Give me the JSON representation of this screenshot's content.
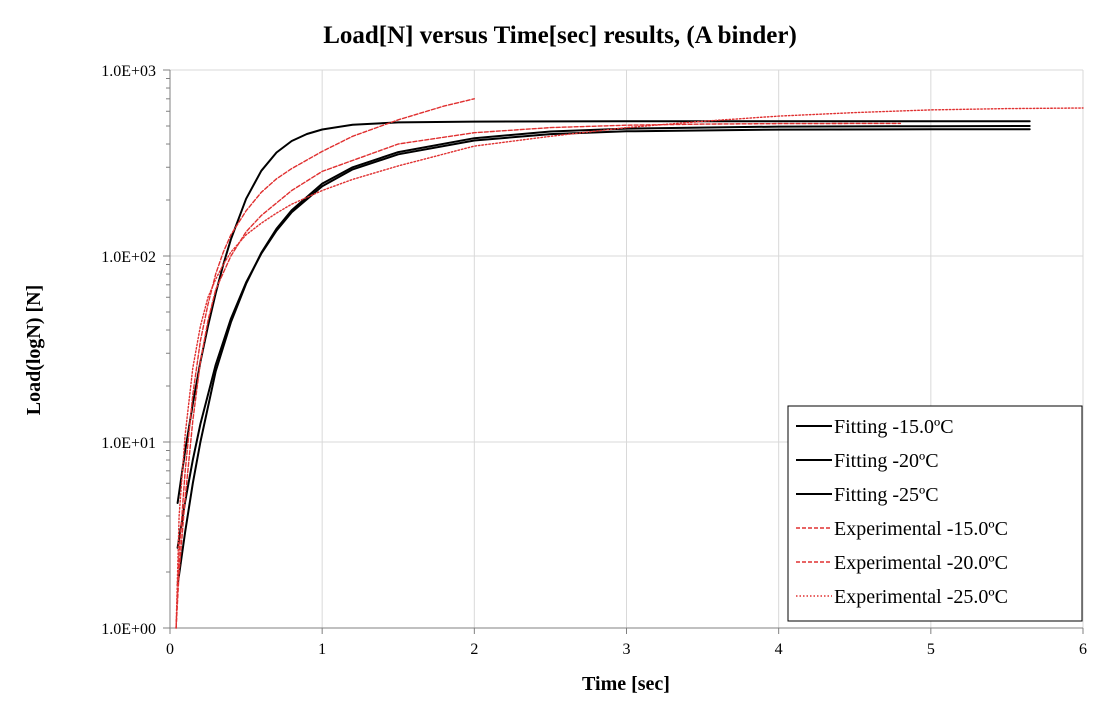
{
  "chart_data": {
    "type": "line",
    "title": "Load[N] versus Time[sec] results, (A binder)",
    "xlabel": "Time [sec]",
    "ylabel": "Load(logN) [N]",
    "xlim": [
      0,
      6
    ],
    "ylim": [
      1,
      1000
    ],
    "y_scale": "log",
    "x_ticks": [
      0,
      1,
      2,
      3,
      4,
      5,
      6
    ],
    "x_tick_labels": [
      "0",
      "1",
      "2",
      "3",
      "4",
      "5",
      "6"
    ],
    "y_ticks": [
      1,
      10,
      100,
      1000
    ],
    "y_tick_labels": [
      "1.0E+00",
      "1.0E+01",
      "1.0E+02",
      "1.0E+03"
    ],
    "grid": true,
    "legend_position": "bottom-right",
    "series": [
      {
        "name": "Fitting -15.0ºC",
        "color": "#000000",
        "style": "solid",
        "x": [
          0.05,
          0.1,
          0.15,
          0.2,
          0.25,
          0.3,
          0.35,
          0.4,
          0.5,
          0.6,
          0.7,
          0.8,
          0.9,
          1.0,
          1.2,
          1.5,
          2.0,
          3.0,
          4.0,
          5.0,
          5.65
        ],
        "y": [
          4.7,
          9,
          16,
          27,
          42,
          63,
          90,
          123,
          203,
          287,
          360,
          415,
          453,
          479,
          508,
          523,
          528,
          530,
          530,
          530,
          530
        ]
      },
      {
        "name": "Fitting -20ºC",
        "color": "#000000",
        "style": "solid",
        "x": [
          0.05,
          0.1,
          0.15,
          0.2,
          0.3,
          0.4,
          0.5,
          0.6,
          0.7,
          0.8,
          1.0,
          1.2,
          1.5,
          2.0,
          2.5,
          3.0,
          4.0,
          5.0,
          5.65
        ],
        "y": [
          1.7,
          3.3,
          6,
          10,
          24,
          44,
          71,
          104,
          140,
          176,
          245,
          300,
          362,
          430,
          467,
          484,
          496,
          499,
          500
        ]
      },
      {
        "name": "Fitting -25ºC",
        "color": "#000000",
        "style": "solid",
        "x": [
          0.05,
          0.1,
          0.15,
          0.2,
          0.3,
          0.4,
          0.5,
          0.6,
          0.7,
          0.8,
          1.0,
          1.2,
          1.5,
          2.0,
          2.5,
          3.0,
          4.0,
          5.0,
          5.65
        ],
        "y": [
          2.7,
          4.8,
          8,
          12.5,
          26,
          46,
          72,
          103,
          137,
          172,
          237,
          292,
          352,
          418,
          452,
          468,
          478,
          480,
          480
        ]
      },
      {
        "name": "Experimental -15.0ºC",
        "color": "#e03030",
        "style": "dashed",
        "x": [
          0.04,
          0.06,
          0.1,
          0.15,
          0.2,
          0.25,
          0.3,
          0.35,
          0.4,
          0.5,
          0.6,
          0.7,
          0.8,
          1.0,
          1.2,
          1.5,
          1.8,
          2.0
        ],
        "y": [
          1.0,
          2.5,
          7,
          18,
          35,
          55,
          80,
          105,
          130,
          175,
          220,
          260,
          295,
          365,
          440,
          540,
          640,
          700
        ]
      },
      {
        "name": "Experimental -20.0ºC",
        "color": "#e03030",
        "style": "dashed",
        "x": [
          0.04,
          0.06,
          0.1,
          0.15,
          0.2,
          0.25,
          0.3,
          0.4,
          0.5,
          0.6,
          0.8,
          1.0,
          1.5,
          2.0,
          2.5,
          3.0,
          3.5,
          4.0,
          4.8
        ],
        "y": [
          1.0,
          2.0,
          5,
          13,
          27,
          45,
          66,
          100,
          135,
          165,
          225,
          285,
          400,
          460,
          490,
          505,
          512,
          515,
          516
        ]
      },
      {
        "name": "Experimental -25.0ºC",
        "color": "#e03030",
        "style": "dotted",
        "x": [
          0.04,
          0.06,
          0.1,
          0.15,
          0.2,
          0.25,
          0.3,
          0.35,
          0.4,
          0.5,
          0.6,
          0.7,
          0.8,
          1.0,
          1.2,
          1.5,
          2.0,
          2.5,
          3.0,
          3.5,
          4.0,
          4.5,
          5.0,
          5.5,
          6.0
        ],
        "y": [
          1.0,
          4,
          11,
          25,
          42,
          60,
          75,
          90,
          105,
          130,
          150,
          170,
          190,
          225,
          258,
          305,
          390,
          440,
          490,
          530,
          565,
          590,
          610,
          620,
          625
        ]
      }
    ]
  }
}
